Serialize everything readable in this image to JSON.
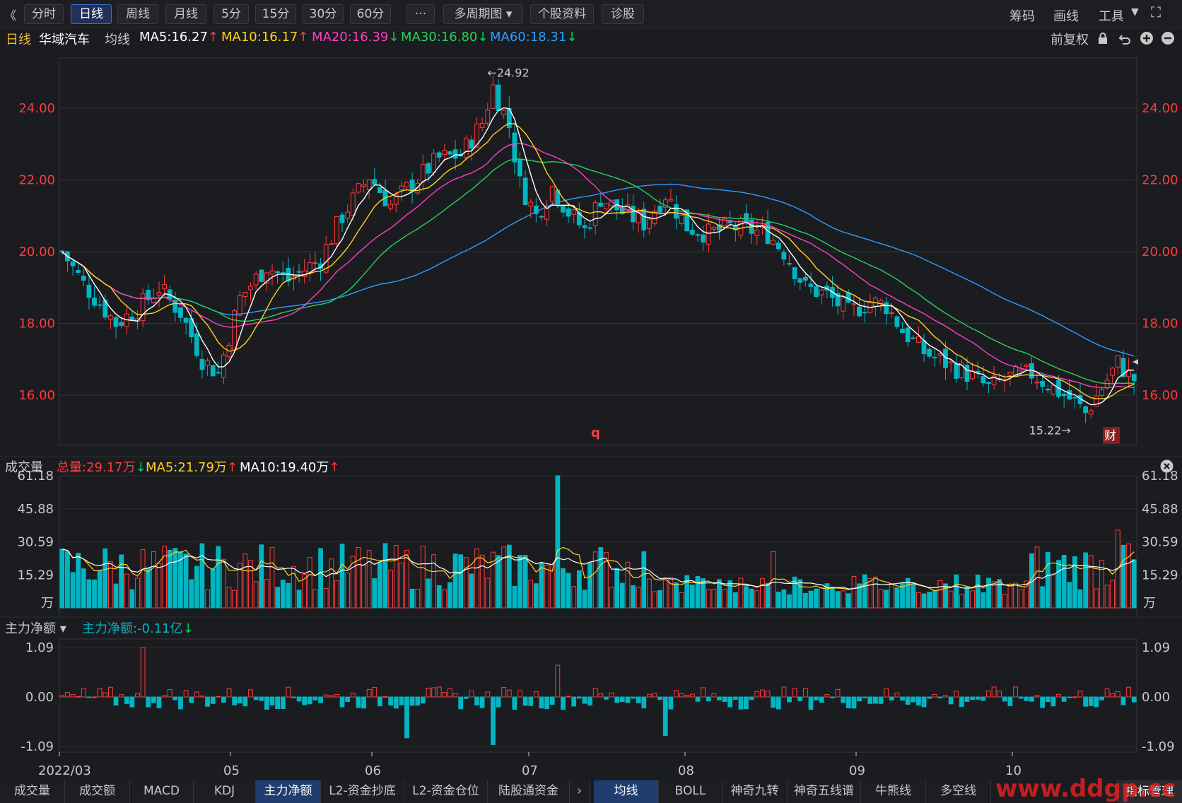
{
  "toolbar": {
    "collapse": "《",
    "tabs": [
      "分时",
      "日线",
      "周线",
      "月线",
      "5分",
      "15分",
      "30分",
      "60分",
      "···",
      "多周期图",
      "个股资料",
      "诊股"
    ],
    "active": "日线",
    "right": [
      "筹码",
      "画线",
      "工具"
    ]
  },
  "header": {
    "period": "日线",
    "name": "华域汽车",
    "ma_title": "均线",
    "ma": [
      {
        "label": "MA5:16.27",
        "arrow": "↑",
        "color": "#ffffff",
        "arrow_color": "#ff4040"
      },
      {
        "label": "MA10:16.17",
        "arrow": "↑",
        "color": "#ffd21f",
        "arrow_color": "#ff4040"
      },
      {
        "label": "MA20:16.39",
        "arrow": "↓",
        "color": "#ff3fbf",
        "arrow_color": "#00d060"
      },
      {
        "label": "MA30:16.80",
        "arrow": "↓",
        "color": "#28d05a",
        "arrow_color": "#00d060"
      },
      {
        "label": "MA60:18.31",
        "arrow": "↓",
        "color": "#2e9bff",
        "arrow_color": "#00d060"
      }
    ],
    "adjust": "前复权"
  },
  "colors": {
    "up": "#ff3b3b",
    "down": "#00b6c2",
    "ma5": "#ffffff",
    "ma10": "#ffd21f",
    "ma20": "#ff3fbf",
    "ma30": "#28d05a",
    "ma60": "#2e9bff",
    "axis": "#ff3b3b"
  },
  "price_panel": {
    "high_label": "←24.92",
    "low_label": "15.22→",
    "marker": "q",
    "badge": "财"
  },
  "volume_panel": {
    "title": "成交量",
    "total": "总量:29.17万",
    "total_arrow": "↓",
    "ma5": "MA5:21.79万",
    "ma5_arrow": "↑",
    "ma10": "MA10:19.40万",
    "ma10_arrow": "↑",
    "unit": "万"
  },
  "flow_panel": {
    "title": "主力净额 ▾",
    "value": "主力净额:-0.11亿",
    "arrow": "↓"
  },
  "date_labels": [
    "2022/03",
    "05",
    "06",
    "07",
    "08",
    "09",
    "10"
  ],
  "bottom_left": [
    "成交量",
    "成交额",
    "MACD",
    "KDJ",
    "主力净额",
    "L2-资金抄底",
    "L2-资金仓位",
    "陆股通资金"
  ],
  "bottom_left_active": "主力净额",
  "bottom_right": [
    "均线",
    "BOLL",
    "神奇九转",
    "神奇五线谱",
    "牛熊线",
    "多空线"
  ],
  "bottom_right_active": "均线",
  "bottom_more": "指标管理",
  "watermark": "www.ddgp.cc",
  "chart_data": {
    "type": "candlestick",
    "title": "华域汽车 日线",
    "x_range": [
      "2022/03",
      "2022/10"
    ],
    "price": {
      "y_ticks": [
        16.0,
        18.0,
        20.0,
        22.0,
        24.0
      ],
      "y_tick_labels": [
        "16.00",
        "18.00",
        "20.00",
        "22.00",
        "24.00"
      ],
      "ylim": [
        14.6,
        25.4
      ],
      "high": 24.92,
      "low": 15.22,
      "last_close": 16.4
    },
    "volume": {
      "y_ticks": [
        15.29,
        30.59,
        45.88,
        61.18
      ],
      "y_tick_labels": [
        "15.29",
        "30.59",
        "45.88",
        "61.18"
      ],
      "unit": "万",
      "peak": 61.18
    },
    "main_flow": {
      "y_ticks": [
        -1.09,
        0.0,
        1.09
      ],
      "y_tick_labels": [
        "-1.09",
        "0.00",
        "1.09"
      ],
      "unit": "亿",
      "last": -0.11
    },
    "price_path": [
      [
        0,
        20.0
      ],
      [
        4,
        19.1
      ],
      [
        10,
        18.0
      ],
      [
        14,
        18.4
      ],
      [
        18,
        19.0
      ],
      [
        22,
        18.3
      ],
      [
        26,
        17.0
      ],
      [
        29,
        16.6
      ],
      [
        33,
        18.7
      ],
      [
        38,
        19.6
      ],
      [
        42,
        19.2
      ],
      [
        48,
        19.8
      ],
      [
        52,
        21.0
      ],
      [
        57,
        22.1
      ],
      [
        61,
        21.3
      ],
      [
        65,
        21.9
      ],
      [
        70,
        22.6
      ],
      [
        74,
        22.7
      ],
      [
        78,
        23.6
      ],
      [
        80,
        24.6
      ],
      [
        83,
        23.5
      ],
      [
        85,
        21.9
      ],
      [
        88,
        21.0
      ],
      [
        91,
        21.8
      ],
      [
        94,
        21.1
      ],
      [
        97,
        20.6
      ],
      [
        100,
        21.5
      ],
      [
        104,
        21.1
      ],
      [
        108,
        20.8
      ],
      [
        112,
        21.6
      ],
      [
        116,
        20.7
      ],
      [
        120,
        20.5
      ],
      [
        124,
        20.7
      ],
      [
        128,
        20.6
      ],
      [
        131,
        20.5
      ],
      [
        134,
        20.0
      ],
      [
        138,
        19.0
      ],
      [
        142,
        18.8
      ],
      [
        146,
        18.3
      ],
      [
        150,
        18.6
      ],
      [
        153,
        18.5
      ],
      [
        156,
        17.8
      ],
      [
        160,
        17.2
      ],
      [
        164,
        16.9
      ],
      [
        168,
        16.6
      ],
      [
        172,
        16.2
      ],
      [
        176,
        16.5
      ],
      [
        180,
        16.6
      ],
      [
        184,
        16.2
      ],
      [
        188,
        15.8
      ],
      [
        190,
        15.5
      ],
      [
        193,
        16.2
      ],
      [
        196,
        16.9
      ],
      [
        199,
        16.4
      ]
    ],
    "series": [
      {
        "name": "MA5",
        "last": 16.27
      },
      {
        "name": "MA10",
        "last": 16.17
      },
      {
        "name": "MA20",
        "last": 16.39
      },
      {
        "name": "MA30",
        "last": 16.8
      },
      {
        "name": "MA60",
        "last": 18.31
      }
    ]
  }
}
